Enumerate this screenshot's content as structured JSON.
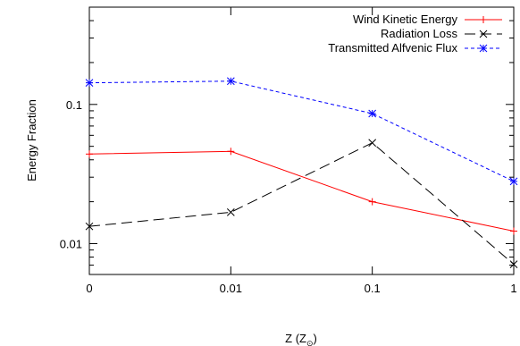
{
  "chart_data": {
    "type": "line",
    "title": "",
    "xlabel_main": "Z (Z",
    "xlabel_sub": "⊙",
    "xlabel_close": ")",
    "ylabel": "Energy Fraction",
    "x_scale": "categorical",
    "y_scale": "log",
    "categories": [
      "0",
      "0.01",
      "0.1",
      "1"
    ],
    "ylim": [
      0.006,
      0.5
    ],
    "y_ticks": [
      {
        "value": 0.01,
        "label": "0.01"
      },
      {
        "value": 0.1,
        "label": "0.1"
      }
    ],
    "legend_position": "top-right",
    "series": [
      {
        "name": "Wind Kinetic Energy",
        "color": "#ff0000",
        "dash": "solid",
        "marker": "plus",
        "values": [
          0.044,
          0.046,
          0.02,
          0.0123
        ]
      },
      {
        "name": "Radiation Loss",
        "color": "#000000",
        "dash": "long-dash",
        "marker": "x",
        "values": [
          0.0133,
          0.0168,
          0.053,
          0.0071
        ]
      },
      {
        "name": "Transmitted Alfvenic Flux",
        "color": "#0000ff",
        "dash": "short-dash",
        "marker": "star",
        "values": [
          0.143,
          0.147,
          0.086,
          0.028
        ]
      }
    ]
  }
}
